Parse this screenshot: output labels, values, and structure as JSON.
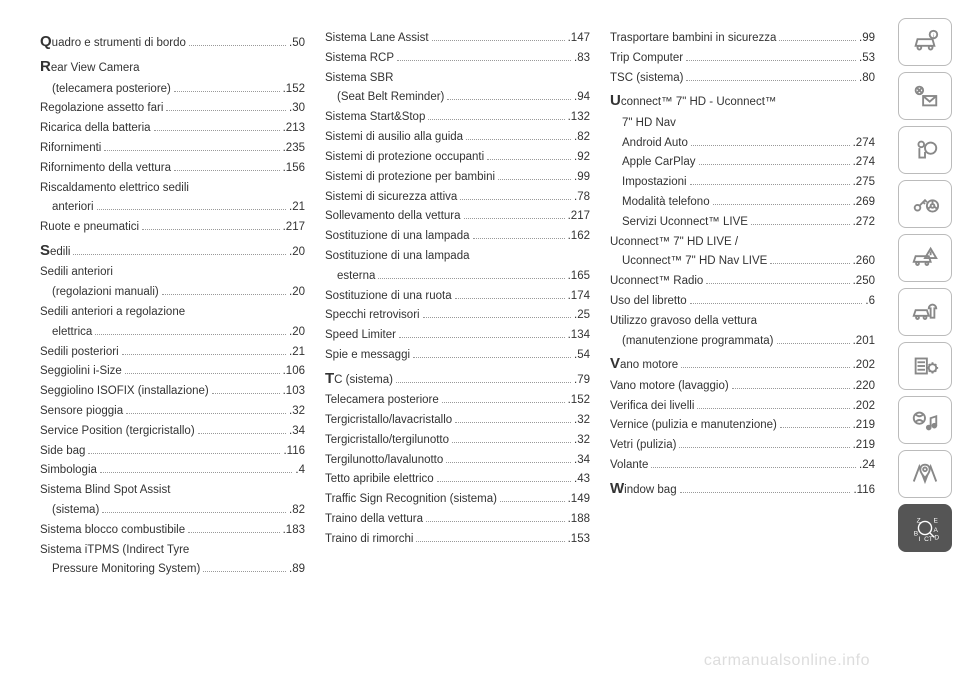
{
  "watermark": "carmanualsonline.info",
  "columns": [
    [
      {
        "big": "Q",
        "rest": "uadro e strumenti di bordo",
        "page": ".50"
      },
      {
        "big": "R",
        "rest": "ear View Camera",
        "page": ""
      },
      {
        "sub": true,
        "rest": "(telecamera posteriore)",
        "page": ".152"
      },
      {
        "rest": "Regolazione assetto fari",
        "page": ".30"
      },
      {
        "rest": "Ricarica della batteria",
        "page": ".213"
      },
      {
        "rest": "Rifornimenti",
        "page": ".235"
      },
      {
        "rest": "Rifornimento della vettura",
        "page": ".156"
      },
      {
        "rest": "Riscaldamento elettrico sedili",
        "page": ""
      },
      {
        "sub": true,
        "rest": "anteriori",
        "page": ".21"
      },
      {
        "rest": "Ruote e pneumatici",
        "page": ".217"
      },
      {
        "big": "S",
        "rest": "edili",
        "page": ".20"
      },
      {
        "rest": "Sedili anteriori",
        "page": ""
      },
      {
        "sub": true,
        "rest": "(regolazioni manuali)",
        "page": ".20"
      },
      {
        "rest": "Sedili anteriori a regolazione",
        "page": ""
      },
      {
        "sub": true,
        "rest": "elettrica",
        "page": ".20"
      },
      {
        "rest": "Sedili posteriori",
        "page": ".21"
      },
      {
        "rest": "Seggiolini i-Size",
        "page": ".106"
      },
      {
        "rest": "Seggiolino ISOFIX (installazione)",
        "page": ".103"
      },
      {
        "rest": "Sensore pioggia",
        "page": ".32"
      },
      {
        "rest": "Service Position (tergicristallo)",
        "page": ".34"
      },
      {
        "rest": "Side bag",
        "page": ".116"
      },
      {
        "rest": "Simbologia",
        "page": ".4"
      },
      {
        "rest": "Sistema Blind Spot Assist",
        "page": ""
      },
      {
        "sub": true,
        "rest": "(sistema)",
        "page": ".82"
      },
      {
        "rest": "Sistema blocco combustibile",
        "page": ".183"
      },
      {
        "rest": "Sistema iTPMS (Indirect Tyre",
        "page": ""
      },
      {
        "sub": true,
        "rest": "Pressure Monitoring System)",
        "page": ".89"
      }
    ],
    [
      {
        "rest": "Sistema Lane Assist",
        "page": ".147"
      },
      {
        "rest": "Sistema RCP",
        "page": ".83"
      },
      {
        "rest": "Sistema SBR",
        "page": ""
      },
      {
        "sub": true,
        "rest": "(Seat Belt Reminder)",
        "page": ".94"
      },
      {
        "rest": "Sistema Start&Stop",
        "page": ".132"
      },
      {
        "rest": "Sistemi di ausilio alla guida",
        "page": ".82"
      },
      {
        "rest": "Sistemi di protezione occupanti",
        "page": ".92"
      },
      {
        "rest": "Sistemi di protezione per bambini",
        "page": ".99"
      },
      {
        "rest": "Sistemi di sicurezza attiva",
        "page": ".78"
      },
      {
        "rest": "Sollevamento della vettura",
        "page": ".217"
      },
      {
        "rest": "Sostituzione di una lampada",
        "page": ".162"
      },
      {
        "rest": "Sostituzione di una lampada",
        "page": ""
      },
      {
        "sub": true,
        "rest": "esterna",
        "page": ".165"
      },
      {
        "rest": "Sostituzione di una ruota",
        "page": ".174"
      },
      {
        "rest": "Specchi retrovisori",
        "page": ".25"
      },
      {
        "rest": "Speed Limiter",
        "page": ".134"
      },
      {
        "rest": "Spie e messaggi",
        "page": ".54"
      },
      {
        "big": "T",
        "rest": "C (sistema)",
        "page": ".79"
      },
      {
        "rest": "Telecamera posteriore",
        "page": ".152"
      },
      {
        "rest": "Tergicristallo/lavacristallo",
        "page": ".32"
      },
      {
        "rest": "Tergicristallo/tergilunotto",
        "page": ".32"
      },
      {
        "rest": "Tergilunotto/lavalunotto",
        "page": ".34"
      },
      {
        "rest": "Tetto apribile elettrico",
        "page": ".43"
      },
      {
        "rest": "Traffic Sign Recognition (sistema)",
        "page": ".149"
      },
      {
        "rest": "Traino della vettura",
        "page": ".188"
      },
      {
        "rest": "Traino di rimorchi",
        "page": ".153"
      }
    ],
    [
      {
        "rest": "Trasportare bambini in sicurezza",
        "page": ".99"
      },
      {
        "rest": "Trip Computer",
        "page": ".53"
      },
      {
        "rest": "TSC (sistema)",
        "page": ".80"
      },
      {
        "big": "U",
        "rest": "connect™ 7\" HD - Uconnect™",
        "page": ""
      },
      {
        "sub": true,
        "rest": "7\" HD Nav",
        "page": ""
      },
      {
        "sub": true,
        "rest": "Android Auto",
        "page": ".274"
      },
      {
        "sub": true,
        "rest": "Apple CarPlay",
        "page": ".274"
      },
      {
        "sub": true,
        "rest": "Impostazioni",
        "page": ".275"
      },
      {
        "sub": true,
        "rest": "Modalità telefono",
        "page": ".269"
      },
      {
        "sub": true,
        "rest": "Servizi Uconnect™ LIVE",
        "page": ".272"
      },
      {
        "rest": "Uconnect™ 7\" HD LIVE /",
        "page": ""
      },
      {
        "sub": true,
        "rest": "Uconnect™ 7\" HD Nav LIVE",
        "page": ".260"
      },
      {
        "rest": "Uconnect™ Radio",
        "page": ".250"
      },
      {
        "rest": "Uso del libretto",
        "page": ".6"
      },
      {
        "rest": "Utilizzo gravoso della vettura",
        "page": ""
      },
      {
        "sub": true,
        "rest": "(manutenzione programmata)",
        "page": ".201"
      },
      {
        "big": "V",
        "rest": "ano motore",
        "page": ".202"
      },
      {
        "rest": "Vano motore (lavaggio)",
        "page": ".220"
      },
      {
        "rest": "Verifica dei livelli",
        "page": ".202"
      },
      {
        "rest": "Vernice (pulizia e manutenzione)",
        "page": ".219"
      },
      {
        "rest": "Vetri (pulizia)",
        "page": ".219"
      },
      {
        "rest": "Volante",
        "page": ".24"
      },
      {
        "big": "W",
        "rest": "indow bag",
        "page": ".116"
      }
    ]
  ],
  "sidebar_icons": [
    "car-info",
    "mail-light",
    "airbag",
    "key-wheel",
    "car-warning",
    "car-service",
    "clipboard-gear",
    "media-note",
    "map-pin",
    "alpha-index"
  ]
}
